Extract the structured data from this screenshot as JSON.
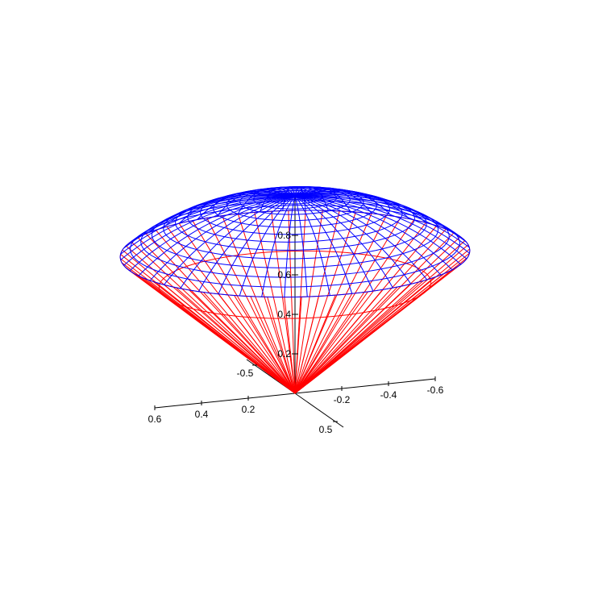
{
  "chart_data": {
    "type": "surface3d",
    "title": "",
    "surfaces": [
      {
        "name": "",
        "shape": "cone",
        "equation": "z = sqrt(x^2 + y^2)",
        "color": "#ff0000",
        "z_range": [
          0,
          0.707
        ]
      },
      {
        "name": "",
        "shape": "sphere-cap",
        "equation": "x^2 + y^2 + z^2 = 1",
        "color": "#0000ff",
        "z_range": [
          0.707,
          1.0
        ]
      }
    ],
    "axes": {
      "x": {
        "ticks": [
          0.6,
          0.4,
          0.2,
          -0.2,
          -0.4,
          -0.6
        ],
        "tick_labels": [
          "0.6",
          "0.4",
          "0.2",
          "-0.2",
          "-0.4",
          "-0.6"
        ]
      },
      "y": {
        "ticks": [
          -0.5,
          0.5
        ],
        "tick_labels": [
          "-0.5",
          "0.5"
        ]
      },
      "z": {
        "ticks": [
          0.2,
          0.4,
          0.6,
          0.8
        ],
        "tick_labels": [
          "0.2",
          "0.4",
          "0.6",
          "0.8"
        ]
      }
    },
    "grid": false,
    "legend": "none"
  }
}
